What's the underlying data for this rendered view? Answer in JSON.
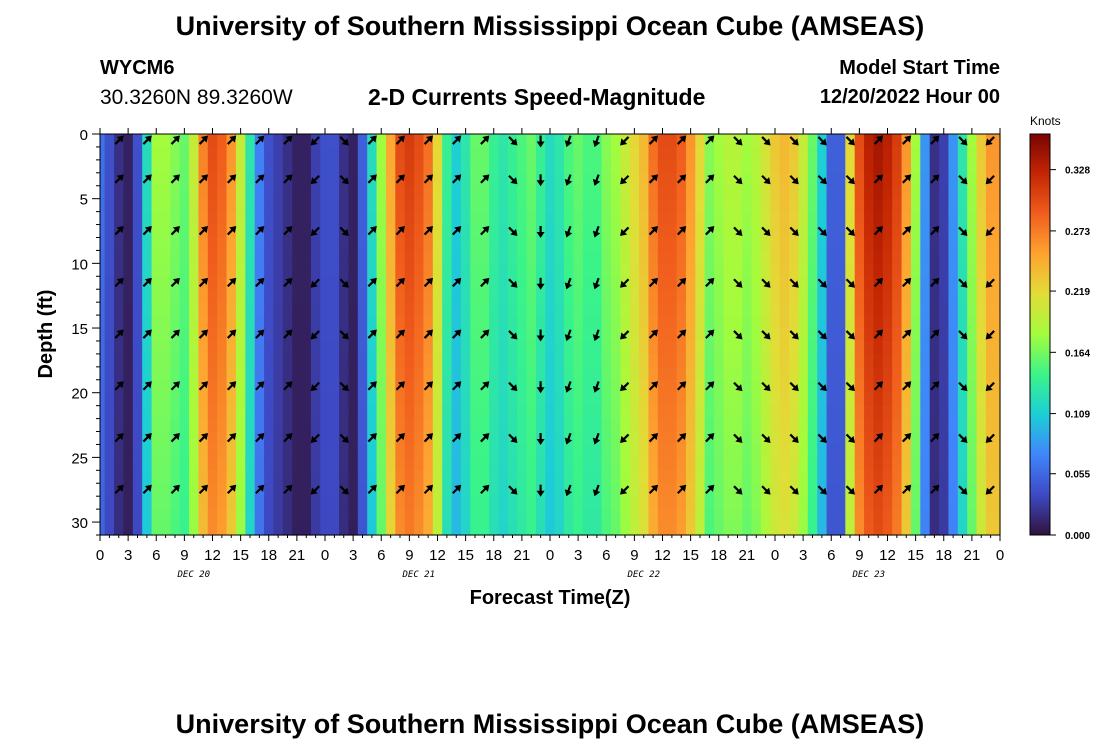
{
  "header": {
    "title": "University of Southern Mississippi Ocean Cube (AMSEAS)",
    "station_id": "WYCM6",
    "coordinates": "30.3260N  89.3260W",
    "subtitle": "2-D Currents Speed-Magnitude",
    "model_start_label": "Model Start Time",
    "model_start_value": "12/20/2022 Hour 00"
  },
  "footer": {
    "title": "University of Southern Mississippi Ocean Cube (AMSEAS)"
  },
  "chart_data": {
    "type": "heatmap",
    "title": "2-D Currents Speed-Magnitude",
    "xlabel": "Forecast Time(Z)",
    "ylabel": "Depth (ft)",
    "x_tick_labels": [
      "0",
      "3",
      "6",
      "9",
      "12",
      "15",
      "18",
      "21",
      "0",
      "3",
      "6",
      "9",
      "12",
      "15",
      "18",
      "21",
      "0",
      "3",
      "6",
      "9",
      "12",
      "15",
      "18",
      "21",
      "0",
      "3",
      "6",
      "9",
      "12",
      "15",
      "18",
      "21",
      "0"
    ],
    "day_labels": [
      "DEC 20",
      "DEC 21",
      "DEC 22",
      "DEC 23"
    ],
    "xlim_hours": [
      0,
      96
    ],
    "ylim_ft": [
      0,
      31
    ],
    "y_ticks": [
      0,
      5,
      10,
      15,
      20,
      25,
      30
    ],
    "colorbar": {
      "unit": "Knots",
      "ticks": [
        0.0,
        0.055,
        0.109,
        0.164,
        0.219,
        0.273,
        0.328
      ],
      "tick_labels": [
        "0.000",
        "0.055",
        "0.109",
        "0.164",
        "0.219",
        "0.273",
        "0.328"
      ],
      "range": [
        0,
        0.36
      ]
    },
    "speed_profile_knots": {
      "hours": [
        0,
        1,
        2,
        3,
        4,
        5,
        6,
        7,
        8,
        9,
        10,
        11,
        12,
        13,
        14,
        15,
        16,
        17,
        18,
        19,
        20,
        21,
        22,
        23,
        24,
        25,
        26,
        27,
        28,
        29,
        30,
        31,
        32,
        33,
        34,
        35,
        36,
        37,
        38,
        39,
        40,
        41,
        42,
        43,
        44,
        45,
        46,
        47,
        48,
        49,
        50,
        51,
        52,
        53,
        54,
        55,
        56,
        57,
        58,
        59,
        60,
        61,
        62,
        63,
        64,
        65,
        66,
        67,
        68,
        69,
        70,
        71,
        72,
        73,
        74,
        75,
        76,
        77,
        78,
        79,
        80,
        81,
        82,
        83,
        84,
        85,
        86,
        87,
        88,
        89,
        90,
        91,
        92,
        93,
        94,
        95,
        96
      ],
      "values": [
        0.06,
        0.04,
        0.02,
        0.01,
        0.04,
        0.12,
        0.18,
        0.18,
        0.17,
        0.16,
        0.2,
        0.27,
        0.3,
        0.29,
        0.26,
        0.2,
        0.13,
        0.07,
        0.04,
        0.03,
        0.02,
        0.01,
        0.01,
        0.03,
        0.04,
        0.04,
        0.02,
        0.01,
        0.05,
        0.12,
        0.18,
        0.25,
        0.3,
        0.31,
        0.3,
        0.28,
        0.22,
        0.14,
        0.11,
        0.13,
        0.16,
        0.16,
        0.14,
        0.13,
        0.14,
        0.15,
        0.16,
        0.14,
        0.12,
        0.13,
        0.15,
        0.16,
        0.15,
        0.15,
        0.17,
        0.18,
        0.2,
        0.22,
        0.24,
        0.28,
        0.3,
        0.3,
        0.29,
        0.26,
        0.22,
        0.17,
        0.18,
        0.19,
        0.19,
        0.18,
        0.19,
        0.21,
        0.23,
        0.24,
        0.23,
        0.2,
        0.16,
        0.11,
        0.05,
        0.05,
        0.22,
        0.3,
        0.33,
        0.34,
        0.33,
        0.31,
        0.26,
        0.18,
        0.08,
        0.02,
        0.03,
        0.08,
        0.13,
        0.18,
        0.23,
        0.26,
        0.26
      ]
    },
    "current_vectors": {
      "hours": [
        2,
        5,
        8,
        11,
        14,
        17,
        20,
        23,
        26,
        29,
        32,
        35,
        38,
        41,
        44,
        47,
        50,
        53,
        56,
        59,
        62,
        65,
        68,
        71,
        74,
        77,
        80,
        83,
        86,
        89,
        92,
        95
      ],
      "depths_ft": [
        0.5,
        3.5,
        7.5,
        11.5,
        15.5,
        19.5,
        23.5,
        27.5
      ],
      "direction_to_deg": [
        45,
        45,
        45,
        45,
        45,
        45,
        45,
        225,
        135,
        45,
        45,
        45,
        45,
        45,
        135,
        180,
        200,
        200,
        225,
        45,
        45,
        45,
        135,
        135,
        135,
        135,
        135,
        45,
        45,
        45,
        135,
        225
      ]
    }
  }
}
